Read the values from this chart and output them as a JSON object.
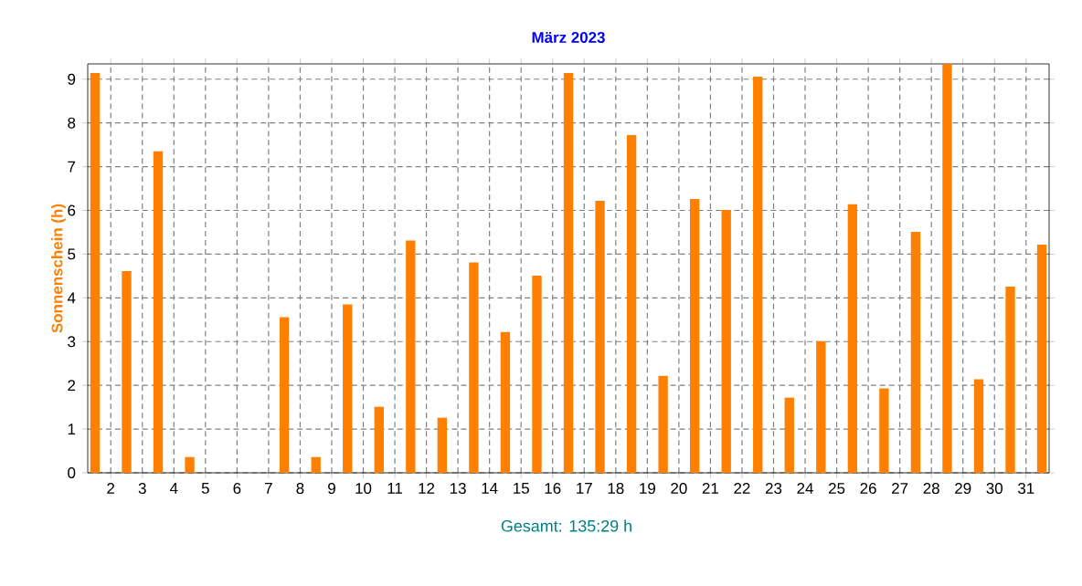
{
  "chart_data": {
    "type": "bar",
    "title": "März 2023",
    "ylabel": "Sonnenschein  (h)",
    "categories": [
      null,
      "2",
      "3",
      "4",
      "5",
      "6",
      "7",
      "8",
      "9",
      "10",
      "11",
      "12",
      "13",
      "14",
      "15",
      "16",
      "17",
      "18",
      "19",
      "20",
      "21",
      "22",
      "23",
      "24",
      "25",
      "26",
      "27",
      "28",
      "29",
      "30",
      "31"
    ],
    "values": [
      9.14,
      4.61,
      7.35,
      0.36,
      0,
      0,
      3.56,
      0.36,
      3.85,
      1.51,
      5.31,
      1.26,
      4.81,
      3.22,
      4.51,
      9.14,
      6.22,
      7.72,
      2.22,
      6.26,
      6.01,
      9.06,
      1.72,
      3.01,
      6.14,
      1.93,
      5.51,
      9.35,
      2.14,
      4.26,
      5.22
    ],
    "color": "#ff8000",
    "ylim": [
      0,
      9.35
    ],
    "yticks": [
      0,
      1,
      2,
      3,
      4,
      5,
      6,
      7,
      8,
      9
    ],
    "grid": true,
    "annotations": [
      "Gesamt: 135:29 h"
    ]
  }
}
